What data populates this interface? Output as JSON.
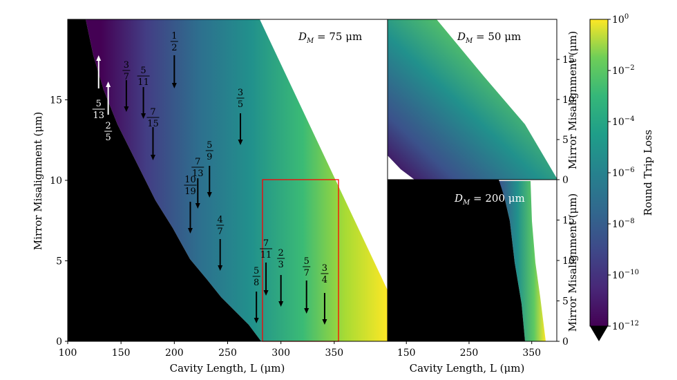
{
  "chart_data": {
    "type": "heatmap",
    "colormap": "viridis",
    "panels": [
      {
        "name": "main",
        "annotation": "D_M = 75 μm",
        "dm_text": "D",
        "dm_sub": "M",
        "dm_rest": " = 75 μm",
        "xlabel": "Cavity Length, L (μm)",
        "ylabel": "Mirror Misalignment (μm)",
        "xlim": [
          100,
          400
        ],
        "ylim": [
          0,
          20
        ],
        "xticks": [
          "100",
          "150",
          "200",
          "250",
          "300",
          "350"
        ],
        "yticks": [
          "0",
          "5",
          "10",
          "15"
        ],
        "highlight_box": {
          "x": [
            280,
            350
          ],
          "y": [
            0,
            10
          ]
        },
        "resonance_labels": [
          {
            "num": "5",
            "den": "13",
            "L": 129,
            "color": "white",
            "dir": "up"
          },
          {
            "num": "2",
            "den": "5",
            "L": 138,
            "color": "white",
            "dir": "up"
          },
          {
            "num": "3",
            "den": "7",
            "L": 155,
            "color": "black",
            "dir": "down"
          },
          {
            "num": "5",
            "den": "11",
            "L": 171,
            "color": "black",
            "dir": "down"
          },
          {
            "num": "7",
            "den": "15",
            "L": 180,
            "color": "black",
            "dir": "down"
          },
          {
            "num": "1",
            "den": "2",
            "L": 200,
            "color": "black",
            "dir": "down"
          },
          {
            "num": "10",
            "den": "19",
            "L": 215,
            "color": "black",
            "dir": "down"
          },
          {
            "num": "7",
            "den": "13",
            "L": 222,
            "color": "black",
            "dir": "down"
          },
          {
            "num": "5",
            "den": "9",
            "L": 233,
            "color": "black",
            "dir": "down"
          },
          {
            "num": "4",
            "den": "7",
            "L": 243,
            "color": "black",
            "dir": "down"
          },
          {
            "num": "3",
            "den": "5",
            "L": 262,
            "color": "black",
            "dir": "down"
          },
          {
            "num": "5",
            "den": "8",
            "L": 277,
            "color": "black",
            "dir": "down"
          },
          {
            "num": "7",
            "den": "11",
            "L": 286,
            "color": "black",
            "dir": "down"
          },
          {
            "num": "2",
            "den": "3",
            "L": 300,
            "color": "black",
            "dir": "down"
          },
          {
            "num": "5",
            "den": "7",
            "L": 324,
            "color": "black",
            "dir": "down"
          },
          {
            "num": "3",
            "den": "4",
            "L": 341,
            "color": "black",
            "dir": "down"
          }
        ]
      },
      {
        "name": "top-right",
        "annotation": "D_M = 50 μm",
        "dm_text": "D",
        "dm_sub": "M",
        "dm_rest": " = 50 μm",
        "ylabel": "Mirror Misalignment (μm)",
        "ylim": [
          0,
          20
        ],
        "yticks": [
          "0",
          "5",
          "10",
          "15"
        ]
      },
      {
        "name": "bottom-right",
        "annotation": "D_M = 200 μm",
        "dm_text": "D",
        "dm_sub": "M",
        "dm_rest": " = 200 μm",
        "xlabel": "Cavity Length, L (μm)",
        "ylabel": "Mirror Misalignment (μm)",
        "xlim": [
          120,
          390
        ],
        "ylim": [
          0,
          20
        ],
        "xticks": [
          "150",
          "250",
          "350"
        ],
        "yticks": [
          "0",
          "5",
          "10",
          "15"
        ]
      }
    ],
    "colorbar": {
      "label": "Round Trip Loss",
      "scale": "log",
      "range_exponents": [
        -12,
        0
      ],
      "ticks": [
        {
          "base": "10",
          "exp": "0"
        },
        {
          "base": "10",
          "exp": "−2"
        },
        {
          "base": "10",
          "exp": "−4"
        },
        {
          "base": "10",
          "exp": "−6"
        },
        {
          "base": "10",
          "exp": "−8"
        },
        {
          "base": "10",
          "exp": "−10"
        },
        {
          "base": "10",
          "exp": "−12"
        }
      ],
      "extend": "min"
    }
  }
}
